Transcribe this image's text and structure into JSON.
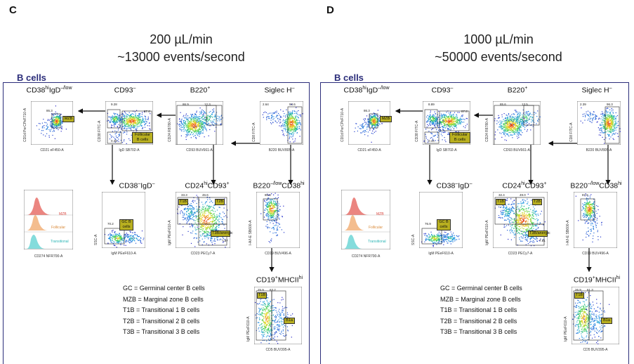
{
  "panels": [
    {
      "letter": "C",
      "flow_rate": "200 µL/min",
      "event_rate": "~13000 events/second",
      "section_title": "B cells",
      "gates": {
        "siglec": {
          "title_text": "Siglec H",
          "title_sup": "–",
          "pct": "93.6",
          "xaxis": "B220 BUV805-A",
          "yaxis": "CD8 FITC-A",
          "pct2": "2.64"
        },
        "b220": {
          "title_text": "B220",
          "title_sup": "+",
          "pct": "12.3",
          "pct2": "86.9",
          "xaxis": "CD93 BUV661-A",
          "yaxis": "CD24 R8780-A"
        },
        "cd93neg": {
          "title_text": "CD93",
          "title_sup": "–",
          "pct": "9.28",
          "pct2": "87.6",
          "pct3": "0.45",
          "xaxis": "IgD SB702-A",
          "yaxis": "CD38 FITC-A",
          "tag": "Follicular B cells"
        },
        "mzb": {
          "title_pre": "CD38",
          "title_sup": "hi",
          "title_mid": "IgD",
          "title_sup2": "–/low",
          "pct": "86.3",
          "xaxis": "CD21 eF450-A",
          "yaxis": "CD1d PerCPeF710-A",
          "tag": "MZB"
        },
        "gc": {
          "title_pre": "CD38",
          "title_sup": "–",
          "title_mid": "IgD",
          "title_sup2": "–",
          "pct": "70.2",
          "xaxis": "IgM PEeF610-A",
          "yaxis": "SSC-A",
          "tag": "GC B cells"
        },
        "cd24": {
          "title_pre": "CD24",
          "title_sup": "hi",
          "title_mid": "CD93",
          "title_sup2": "+",
          "pct1": "33.3",
          "pct2": "46.6",
          "pct3": "7.87",
          "xaxis": "CD23 PECy7-A",
          "yaxis": "IgM PEeF610-A",
          "tag_t1b": "T1B",
          "tag_t2b": "T2B",
          "tag_t3b": "T3B/anergic"
        },
        "b220low": {
          "title_pre": "B220",
          "title_sup": "–/low",
          "title_mid": "CD38",
          "title_sup2": "hi",
          "pct": "86.8",
          "xaxis": "CD19 BUV496-A",
          "yaxis": "I-A/I-E SB600-A"
        },
        "cd19": {
          "title_pre": "CD19",
          "title_sup": "+",
          "title_mid": "MHCII",
          "title_sup2": "hi",
          "pct1": "25.9",
          "pct2": "63.2",
          "xaxis": "CD5 BUV395-A",
          "yaxis": "IgM PEeF610-A",
          "tag_t1b": "T1B",
          "tag_b1a": "B1a"
        },
        "hist": {
          "xaxis": "CD274 NFR700-A",
          "mzb": "MZB",
          "follicular": "Follicular",
          "transitional": "Transitional"
        }
      },
      "legend": [
        "GC = Germinal center B cells",
        "MZB = Marginal zone B cells",
        "T1B = Transitional 1 B cells",
        "T2B = Transitional 2 B cells",
        "T3B = Transitional 3 B cells"
      ]
    },
    {
      "letter": "D",
      "flow_rate": "1000 µL/min",
      "event_rate": "~50000 events/second",
      "section_title": "B cells",
      "gates": {
        "siglec": {
          "title_text": "Siglec H",
          "title_sup": "–",
          "pct": "96.3",
          "xaxis": "B220 BUV805-A",
          "yaxis": "CD8 FITC-A",
          "pct2": "2.39"
        },
        "b220": {
          "title_text": "B220",
          "title_sup": "+",
          "pct": "13.5",
          "pct2": "85.6",
          "xaxis": "CD93 BUV661-A",
          "yaxis": "CD24 R8780-A"
        },
        "cd93neg": {
          "title_text": "CD93",
          "title_sup": "–",
          "pct": "8.89",
          "pct2": "87.8",
          "pct3": "0.44",
          "xaxis": "IgD SB702-A",
          "yaxis": "CD38 FITC-A",
          "tag": "Follicular B cells"
        },
        "mzb": {
          "title_pre": "CD38",
          "title_sup": "hi",
          "title_mid": "IgD",
          "title_sup2": "–/low",
          "pct": "86.3",
          "xaxis": "CD21 eF450-A",
          "yaxis": "CD1d PerCPeF710-A",
          "tag": "MZB"
        },
        "gc": {
          "title_pre": "CD38",
          "title_sup": "–",
          "title_mid": "IgD",
          "title_sup2": "–",
          "pct": "76.9",
          "xaxis": "IgM PEeF610-A",
          "yaxis": "SSC-A",
          "tag": "GC B cells"
        },
        "cd24": {
          "title_pre": "CD24",
          "title_sup": "hi",
          "title_mid": "CD93",
          "title_sup2": "+",
          "pct1": "32.4",
          "pct2": "49.0",
          "pct3": "7.81",
          "xaxis": "CD23 PECy7-A",
          "yaxis": "IgM PEeF610-A",
          "tag_t1b": "T1B",
          "tag_t2b": "T2B",
          "tag_t3b": "T3B/anergic"
        },
        "b220low": {
          "title_pre": "B220",
          "title_sup": "–/low",
          "title_mid": "CD38",
          "title_sup2": "hi",
          "pct": "87.6",
          "xaxis": "CD19 BUV496-A",
          "yaxis": "I-A/I-E SB600-A"
        },
        "cd19": {
          "title_pre": "CD19",
          "title_sup": "+",
          "title_mid": "MHCII",
          "title_sup2": "hi",
          "pct1": "26.9",
          "pct2": "61.3",
          "xaxis": "CD5 BUV395-A",
          "yaxis": "IgM PEeF610-A",
          "tag_t1b": "T1B",
          "tag_b1a": "B1a"
        },
        "hist": {
          "xaxis": "CD274 NFR700-A",
          "mzb": "MZB",
          "follicular": "Follicular",
          "transitional": "Transitional"
        }
      },
      "legend": [
        "GC = Germinal center B cells",
        "MZB = Marginal zone B cells",
        "T1B = Transitional 1 B cells",
        "T2B = Transitional 2 B cells",
        "T3B = Transitional 3 B cells"
      ]
    }
  ],
  "colors": {
    "frame": "#2b2d7a",
    "gate_tag": "#b9b020",
    "mzb_hist": "#e8706a",
    "follicular_hist": "#f2b27a",
    "transitional_hist": "#6fd6d6"
  }
}
